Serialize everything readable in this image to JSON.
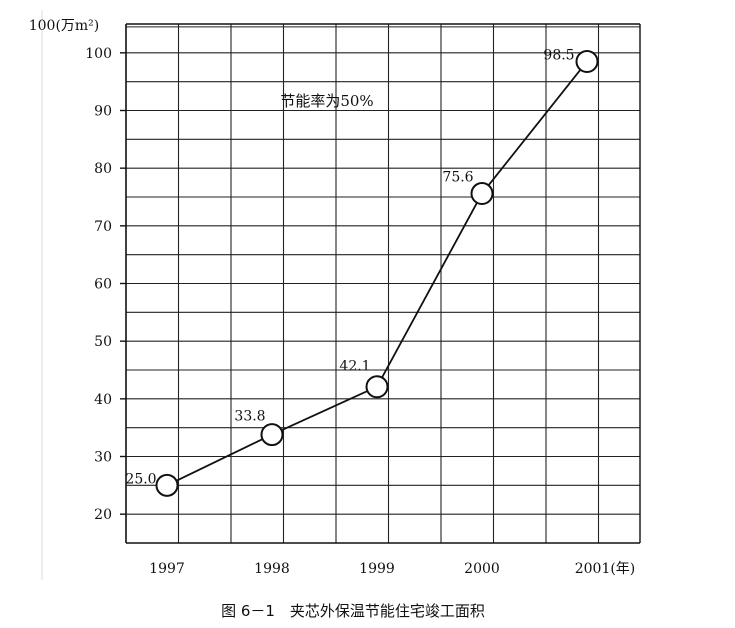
{
  "chart_data": {
    "type": "line",
    "title": "",
    "caption": "图 6－1　夹芯外保温节能住宅竣工面积",
    "annotation": "节能率为50%",
    "ylabel": "100(万m²)",
    "xlabel": "",
    "categories": [
      "1997",
      "1998",
      "1999",
      "2000",
      "2001(年)"
    ],
    "series": [
      {
        "values": [
          25.0,
          33.8,
          42.1,
          75.6,
          98.5
        ],
        "labels": [
          "25.0",
          "33.8",
          "42.1",
          "75.6",
          "98.5"
        ]
      }
    ],
    "yticks": [
      "20",
      "30",
      "40",
      "50",
      "60",
      "70",
      "80",
      "90",
      "100"
    ],
    "ylim": [
      15,
      105
    ],
    "grid": true,
    "marker": "open-circle"
  },
  "colors": {
    "ink": "#111111",
    "grid": "#222222",
    "background": "#ffffff"
  }
}
